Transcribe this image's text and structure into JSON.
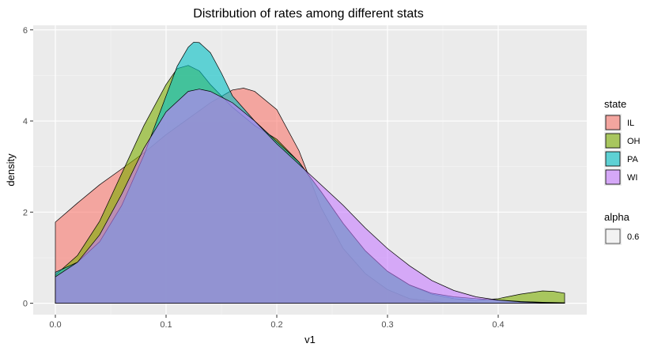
{
  "chart_data": {
    "type": "area",
    "title": "Distribution of rates among different stats",
    "xlabel": "v1",
    "ylabel": "density",
    "xlim": [
      -0.02,
      0.48
    ],
    "ylim": [
      -0.25,
      6.1
    ],
    "x_ticks": [
      0.0,
      0.1,
      0.2,
      0.3,
      0.4
    ],
    "x_tick_labels": [
      "0.0",
      "0.1",
      "0.2",
      "0.3",
      "0.4"
    ],
    "y_ticks": [
      0,
      2,
      4,
      6
    ],
    "y_tick_labels": [
      "0",
      "2",
      "4",
      "6"
    ],
    "grid": true,
    "legend_position": "right",
    "legend": {
      "title": "state",
      "entries": [
        {
          "label": "IL",
          "color": "#F8766D"
        },
        {
          "label": "OH",
          "color": "#7CAE00"
        },
        {
          "label": "PA",
          "color": "#00BFC4"
        },
        {
          "label": "WI",
          "color": "#C77CFF"
        }
      ]
    },
    "alpha_legend": {
      "title": "alpha",
      "label": "0.6"
    },
    "fill_opacity": 0.6,
    "series": [
      {
        "name": "IL",
        "color": "#F8766D",
        "points": [
          [
            0.0,
            1.78
          ],
          [
            0.02,
            2.2
          ],
          [
            0.04,
            2.6
          ],
          [
            0.06,
            2.95
          ],
          [
            0.08,
            3.3
          ],
          [
            0.1,
            3.7
          ],
          [
            0.12,
            4.05
          ],
          [
            0.14,
            4.4
          ],
          [
            0.16,
            4.68
          ],
          [
            0.17,
            4.72
          ],
          [
            0.18,
            4.65
          ],
          [
            0.2,
            4.25
          ],
          [
            0.22,
            3.35
          ],
          [
            0.24,
            2.1
          ],
          [
            0.26,
            1.2
          ],
          [
            0.28,
            0.65
          ],
          [
            0.3,
            0.3
          ],
          [
            0.32,
            0.1
          ],
          [
            0.35,
            0.02
          ],
          [
            0.4,
            0.0
          ],
          [
            0.45,
            0.0
          ],
          [
            0.46,
            0.0
          ]
        ]
      },
      {
        "name": "OH",
        "color": "#7CAE00",
        "points": [
          [
            0.0,
            0.62
          ],
          [
            0.02,
            1.05
          ],
          [
            0.04,
            1.8
          ],
          [
            0.06,
            2.85
          ],
          [
            0.08,
            3.9
          ],
          [
            0.1,
            4.8
          ],
          [
            0.11,
            5.15
          ],
          [
            0.12,
            5.22
          ],
          [
            0.13,
            5.1
          ],
          [
            0.14,
            4.8
          ],
          [
            0.16,
            4.3
          ],
          [
            0.18,
            3.9
          ],
          [
            0.2,
            3.6
          ],
          [
            0.22,
            3.1
          ],
          [
            0.24,
            2.45
          ],
          [
            0.26,
            1.75
          ],
          [
            0.28,
            1.15
          ],
          [
            0.3,
            0.7
          ],
          [
            0.32,
            0.4
          ],
          [
            0.34,
            0.2
          ],
          [
            0.36,
            0.1
          ],
          [
            0.38,
            0.06
          ],
          [
            0.4,
            0.1
          ],
          [
            0.42,
            0.2
          ],
          [
            0.44,
            0.27
          ],
          [
            0.45,
            0.26
          ],
          [
            0.46,
            0.22
          ]
        ]
      },
      {
        "name": "PA",
        "color": "#00BFC4",
        "points": [
          [
            0.0,
            0.68
          ],
          [
            0.02,
            0.9
          ],
          [
            0.04,
            1.35
          ],
          [
            0.06,
            2.15
          ],
          [
            0.08,
            3.25
          ],
          [
            0.1,
            4.55
          ],
          [
            0.11,
            5.2
          ],
          [
            0.12,
            5.62
          ],
          [
            0.125,
            5.73
          ],
          [
            0.13,
            5.72
          ],
          [
            0.14,
            5.5
          ],
          [
            0.15,
            5.05
          ],
          [
            0.16,
            4.55
          ],
          [
            0.18,
            4.0
          ],
          [
            0.2,
            3.55
          ],
          [
            0.22,
            3.1
          ],
          [
            0.24,
            2.45
          ],
          [
            0.26,
            1.75
          ],
          [
            0.28,
            1.15
          ],
          [
            0.3,
            0.7
          ],
          [
            0.32,
            0.4
          ],
          [
            0.34,
            0.22
          ],
          [
            0.36,
            0.14
          ],
          [
            0.38,
            0.1
          ],
          [
            0.4,
            0.07
          ],
          [
            0.42,
            0.04
          ],
          [
            0.44,
            0.02
          ],
          [
            0.46,
            0.01
          ]
        ]
      },
      {
        "name": "WI",
        "color": "#C77CFF",
        "points": [
          [
            0.0,
            0.58
          ],
          [
            0.02,
            0.9
          ],
          [
            0.04,
            1.5
          ],
          [
            0.06,
            2.4
          ],
          [
            0.08,
            3.4
          ],
          [
            0.1,
            4.2
          ],
          [
            0.12,
            4.65
          ],
          [
            0.13,
            4.7
          ],
          [
            0.14,
            4.65
          ],
          [
            0.16,
            4.4
          ],
          [
            0.18,
            4.0
          ],
          [
            0.2,
            3.5
          ],
          [
            0.22,
            3.05
          ],
          [
            0.24,
            2.6
          ],
          [
            0.26,
            2.15
          ],
          [
            0.28,
            1.65
          ],
          [
            0.3,
            1.2
          ],
          [
            0.32,
            0.82
          ],
          [
            0.34,
            0.5
          ],
          [
            0.36,
            0.28
          ],
          [
            0.38,
            0.14
          ],
          [
            0.4,
            0.07
          ],
          [
            0.42,
            0.03
          ],
          [
            0.44,
            0.01
          ],
          [
            0.46,
            0.0
          ]
        ]
      }
    ]
  }
}
